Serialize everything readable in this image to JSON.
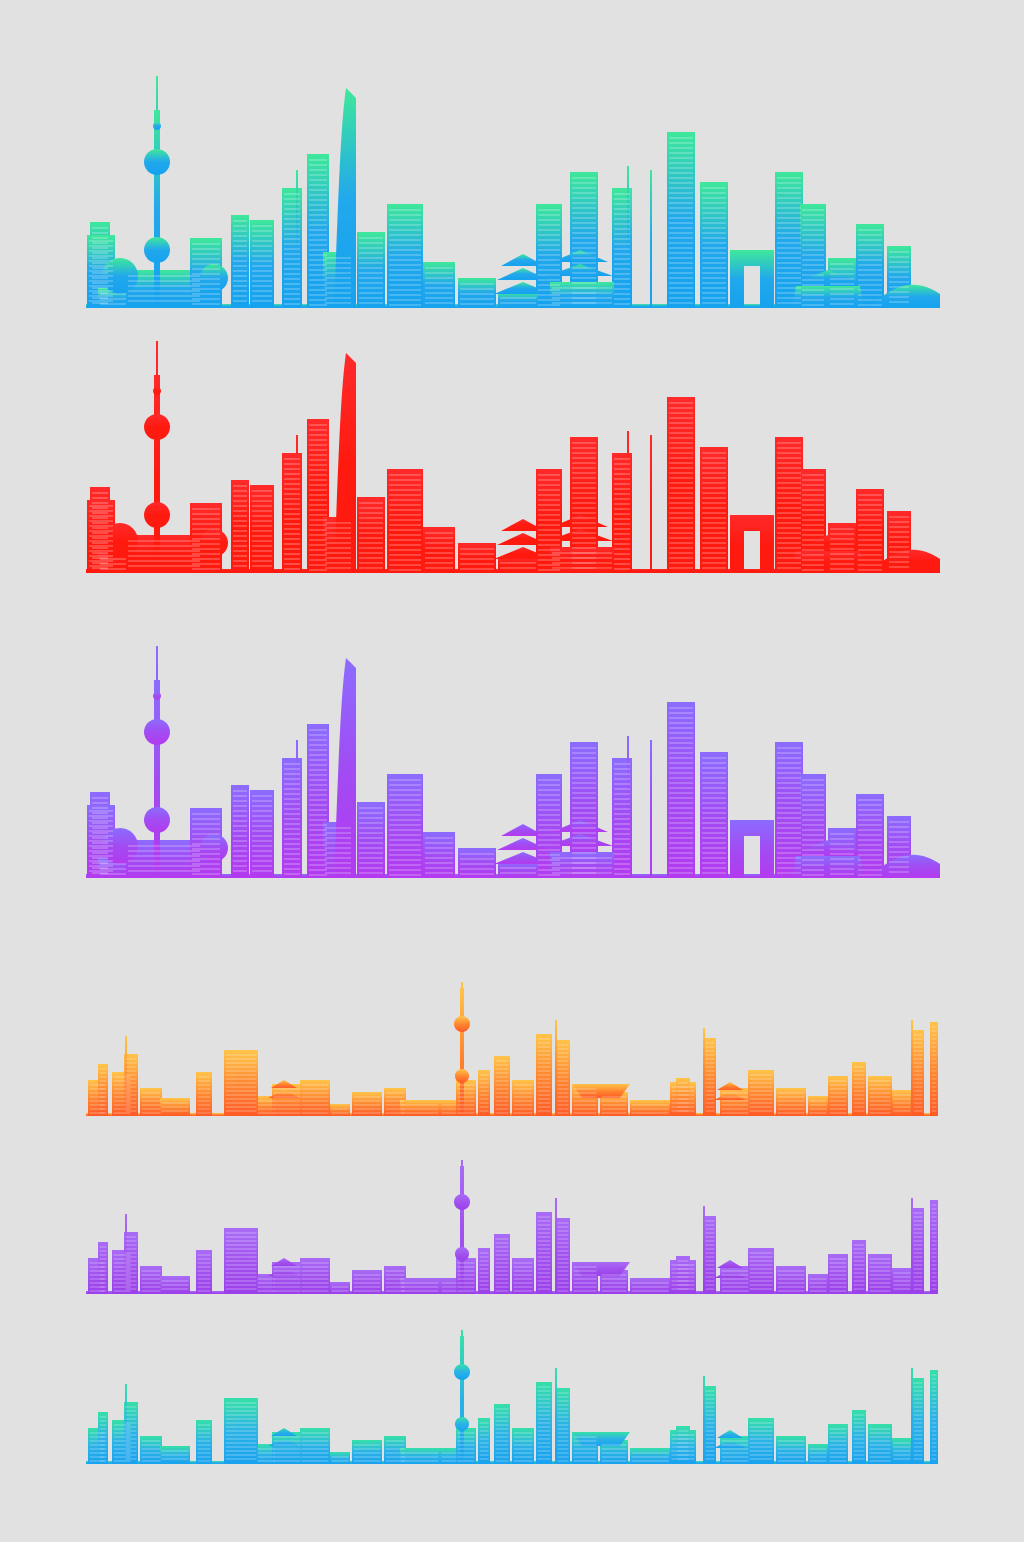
{
  "artwork": {
    "background": "#e1e1e1",
    "skylines": [
      {
        "name": "skyline-large-teal-blue",
        "style": "large",
        "gradient": [
          "#3ee89a",
          "#22a8ec",
          "#15a2ee"
        ]
      },
      {
        "name": "skyline-large-red",
        "style": "large",
        "gradient": [
          "#ff2a2a",
          "#ff1a10",
          "#ff1a10"
        ]
      },
      {
        "name": "skyline-large-violet",
        "style": "large",
        "gradient": [
          "#8c6cff",
          "#a14cf3",
          "#b33af0"
        ]
      },
      {
        "name": "skyline-panorama-orange",
        "style": "panorama",
        "gradient": [
          "#ffc44a",
          "#ff8830",
          "#ff5a26"
        ]
      },
      {
        "name": "skyline-panorama-violet",
        "style": "panorama",
        "gradient": [
          "#a86cf6",
          "#a252ee",
          "#9b40ea"
        ]
      },
      {
        "name": "skyline-panorama-teal-blue",
        "style": "panorama",
        "gradient": [
          "#36e0a8",
          "#2ab2e6",
          "#19a2ee"
        ]
      }
    ]
  }
}
